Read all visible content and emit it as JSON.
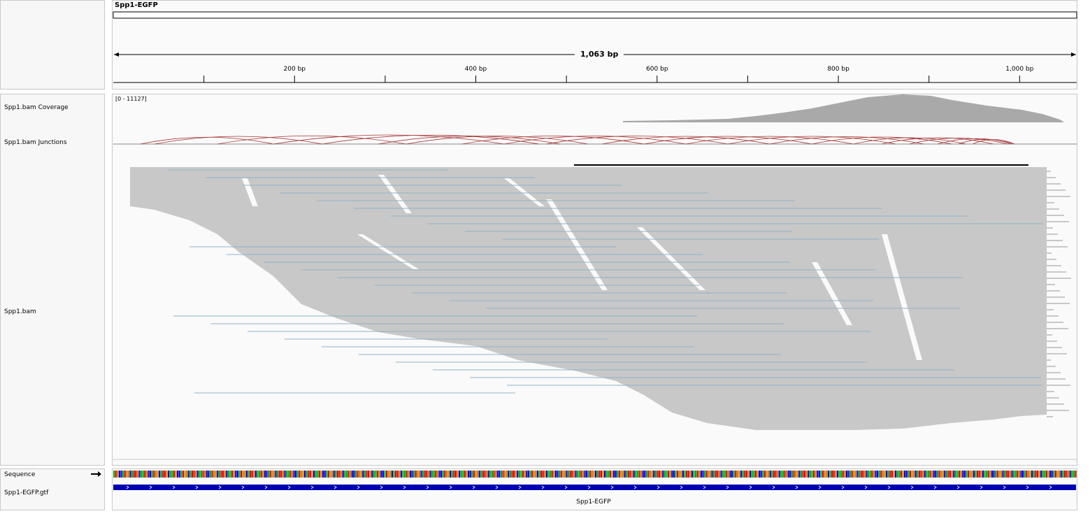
{
  "locus": {
    "name": "Spp1-EGFP",
    "span": "1,063 bp"
  },
  "ruler": {
    "ticks": [
      {
        "bp": 100,
        "label": ""
      },
      {
        "bp": 200,
        "label": "200 bp"
      },
      {
        "bp": 300,
        "label": ""
      },
      {
        "bp": 400,
        "label": "400 bp"
      },
      {
        "bp": 500,
        "label": ""
      },
      {
        "bp": 600,
        "label": "600 bp"
      },
      {
        "bp": 700,
        "label": ""
      },
      {
        "bp": 800,
        "label": "800 bp"
      },
      {
        "bp": 900,
        "label": ""
      },
      {
        "bp": 1000,
        "label": "1,000 bp"
      }
    ]
  },
  "tracks": {
    "coverage": {
      "name": "Spp1.bam Coverage",
      "range": "[0 - 11127]"
    },
    "junctions": {
      "name": "Spp1.bam Junctions"
    },
    "alignments": {
      "name": "Spp1.bam"
    },
    "sequence": {
      "name": "Sequence",
      "strand_icon": "right-arrow-icon"
    },
    "annotation": {
      "name": "Spp1-EGFP.gtf",
      "feature": "Spp1-EGFP"
    }
  },
  "colors": {
    "coverage": "#a9a9a9",
    "junction": "#a33333",
    "read": "#c8c8c8",
    "spliced_read": "#8fb2c9",
    "gene": "#0000b2"
  }
}
